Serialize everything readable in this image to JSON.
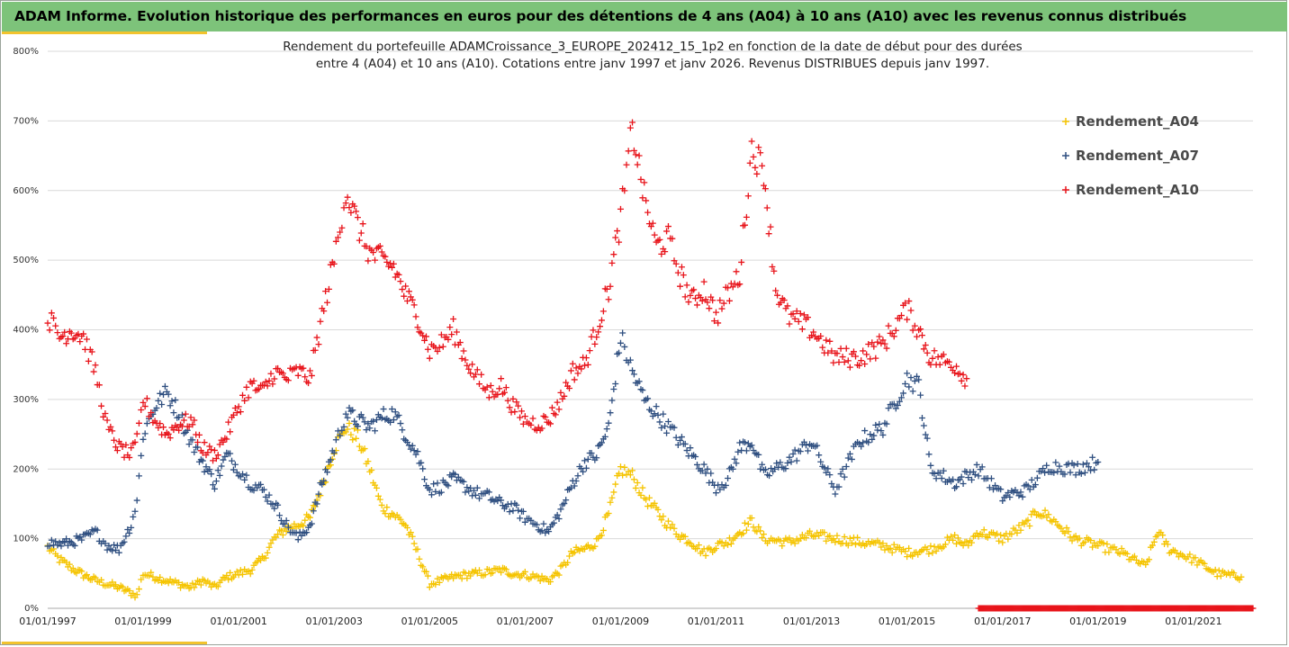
{
  "header": {
    "title": "ADAM Informe. Evolution historique des performances en euros pour des détentions de 4 ans (A04) à 10 ans (A10) avec les revenus connus distribués"
  },
  "colors": {
    "header_bg": "#7dc37a",
    "accent": "#f2c32e",
    "A04": "#f5c400",
    "A07": "#2f4f80",
    "A10": "#e8141b"
  },
  "chart_data": {
    "type": "scatter",
    "title_lines": [
      "Rendement du portefeuille ADAMCroissance_3_EUROPE_202412_15_1p2  en fonction de la date de début pour des durées",
      "entre 4 (A04) et 10 ans (A10). Cotations entre janv 1997 et janv 2026. Revenus DISTRIBUES depuis janv 1997."
    ],
    "xlabel": "",
    "ylabel": "",
    "x_axis": {
      "type": "date",
      "range": [
        "1997-01-01",
        "2022-04-01"
      ],
      "tick_labels": [
        "01/01/1997",
        "01/01/1999",
        "01/01/2001",
        "01/01/2003",
        "01/01/2005",
        "01/01/2007",
        "01/01/2009",
        "01/01/2011",
        "01/01/2013",
        "01/01/2015",
        "01/01/2017",
        "01/01/2019",
        "01/01/2021"
      ],
      "tick_dates": [
        "1997-01-01",
        "1999-01-01",
        "2001-01-01",
        "2003-01-01",
        "2005-01-01",
        "2007-01-01",
        "2009-01-01",
        "2011-01-01",
        "2013-01-01",
        "2015-01-01",
        "2017-01-01",
        "2019-01-01",
        "2021-01-01"
      ]
    },
    "y_axis": {
      "unit": "%",
      "range": [
        0,
        800
      ],
      "ticks": [
        0,
        100,
        200,
        300,
        400,
        500,
        600,
        700,
        800
      ],
      "tick_labels": [
        "0%",
        "100%",
        "200%",
        "300%",
        "400%",
        "500%",
        "600%",
        "700%",
        "800%"
      ],
      "gridlines": true
    },
    "legend": {
      "position": "right"
    },
    "marker": "+",
    "series": [
      {
        "name": "Rendement_A04",
        "color": "#f5c400",
        "points": [
          [
            "1997-01-01",
            88
          ],
          [
            "1997-04-01",
            70
          ],
          [
            "1997-07-01",
            58
          ],
          [
            "1997-10-01",
            48
          ],
          [
            "1998-01-01",
            40
          ],
          [
            "1998-04-01",
            35
          ],
          [
            "1998-07-01",
            30
          ],
          [
            "1998-10-01",
            22
          ],
          [
            "1998-11-15",
            18
          ],
          [
            "1999-01-01",
            50
          ],
          [
            "1999-04-01",
            45
          ],
          [
            "1999-07-01",
            40
          ],
          [
            "1999-10-01",
            35
          ],
          [
            "2000-01-01",
            30
          ],
          [
            "2000-04-01",
            40
          ],
          [
            "2000-07-01",
            30
          ],
          [
            "2000-10-01",
            45
          ],
          [
            "2001-01-01",
            50
          ],
          [
            "2001-04-01",
            55
          ],
          [
            "2001-07-01",
            70
          ],
          [
            "2001-10-01",
            100
          ],
          [
            "2002-01-01",
            115
          ],
          [
            "2002-04-01",
            120
          ],
          [
            "2002-07-01",
            130
          ],
          [
            "2002-10-01",
            175
          ],
          [
            "2003-01-01",
            230
          ],
          [
            "2003-04-01",
            260
          ],
          [
            "2003-07-01",
            245
          ],
          [
            "2003-10-01",
            200
          ],
          [
            "2004-01-01",
            145
          ],
          [
            "2004-04-01",
            135
          ],
          [
            "2004-07-01",
            120
          ],
          [
            "2004-10-01",
            80
          ],
          [
            "2005-01-01",
            35
          ],
          [
            "2005-04-01",
            40
          ],
          [
            "2005-07-01",
            45
          ],
          [
            "2005-10-01",
            48
          ],
          [
            "2006-01-01",
            50
          ],
          [
            "2006-04-01",
            52
          ],
          [
            "2006-07-01",
            55
          ],
          [
            "2006-10-01",
            50
          ],
          [
            "2007-01-01",
            48
          ],
          [
            "2007-04-01",
            45
          ],
          [
            "2007-07-01",
            40
          ],
          [
            "2007-10-01",
            55
          ],
          [
            "2008-01-01",
            80
          ],
          [
            "2008-04-01",
            85
          ],
          [
            "2008-07-01",
            95
          ],
          [
            "2008-10-01",
            135
          ],
          [
            "2009-01-01",
            200
          ],
          [
            "2009-04-01",
            190
          ],
          [
            "2009-07-01",
            160
          ],
          [
            "2009-10-01",
            140
          ],
          [
            "2010-01-01",
            120
          ],
          [
            "2010-04-01",
            105
          ],
          [
            "2010-07-01",
            95
          ],
          [
            "2010-10-01",
            80
          ],
          [
            "2011-01-01",
            90
          ],
          [
            "2011-04-01",
            95
          ],
          [
            "2011-07-01",
            110
          ],
          [
            "2011-10-01",
            125
          ],
          [
            "2012-01-01",
            100
          ],
          [
            "2012-07-01",
            95
          ],
          [
            "2013-01-01",
            105
          ],
          [
            "2013-07-01",
            100
          ],
          [
            "2014-01-01",
            95
          ],
          [
            "2014-07-01",
            90
          ],
          [
            "2015-01-01",
            80
          ],
          [
            "2015-07-01",
            85
          ],
          [
            "2016-01-01",
            100
          ],
          [
            "2016-04-01",
            90
          ],
          [
            "2016-07-01",
            110
          ],
          [
            "2017-01-01",
            100
          ],
          [
            "2017-07-01",
            120
          ],
          [
            "2017-10-01",
            140
          ],
          [
            "2018-01-01",
            130
          ],
          [
            "2018-07-01",
            100
          ],
          [
            "2019-01-01",
            90
          ],
          [
            "2019-07-01",
            80
          ],
          [
            "2020-01-01",
            60
          ],
          [
            "2020-04-01",
            110
          ],
          [
            "2020-07-01",
            85
          ],
          [
            "2021-01-01",
            70
          ],
          [
            "2021-07-01",
            50
          ],
          [
            "2022-01-01",
            45
          ]
        ]
      },
      {
        "name": "Rendement_A07",
        "color": "#2f4f80",
        "points": [
          [
            "1997-01-01",
            95
          ],
          [
            "1997-04-01",
            92
          ],
          [
            "1997-07-01",
            95
          ],
          [
            "1997-10-01",
            100
          ],
          [
            "1998-01-01",
            110
          ],
          [
            "1998-04-01",
            90
          ],
          [
            "1998-07-01",
            85
          ],
          [
            "1998-10-01",
            120
          ],
          [
            "1998-11-15",
            155
          ],
          [
            "1999-01-01",
            250
          ],
          [
            "1999-04-01",
            290
          ],
          [
            "1999-07-01",
            310
          ],
          [
            "1999-10-01",
            280
          ],
          [
            "2000-01-01",
            240
          ],
          [
            "2000-04-01",
            210
          ],
          [
            "2000-07-01",
            180
          ],
          [
            "2000-10-01",
            220
          ],
          [
            "2001-01-01",
            200
          ],
          [
            "2001-04-01",
            180
          ],
          [
            "2001-07-01",
            170
          ],
          [
            "2001-10-01",
            150
          ],
          [
            "2002-01-01",
            120
          ],
          [
            "2002-04-01",
            100
          ],
          [
            "2002-07-01",
            120
          ],
          [
            "2002-10-01",
            180
          ],
          [
            "2003-01-01",
            230
          ],
          [
            "2003-04-01",
            280
          ],
          [
            "2003-07-01",
            270
          ],
          [
            "2003-10-01",
            260
          ],
          [
            "2004-01-01",
            275
          ],
          [
            "2004-04-01",
            280
          ],
          [
            "2004-07-01",
            250
          ],
          [
            "2004-10-01",
            220
          ],
          [
            "2005-01-01",
            170
          ],
          [
            "2005-04-01",
            175
          ],
          [
            "2005-07-01",
            185
          ],
          [
            "2005-10-01",
            175
          ],
          [
            "2006-01-01",
            165
          ],
          [
            "2006-04-01",
            160
          ],
          [
            "2006-07-01",
            150
          ],
          [
            "2006-10-01",
            145
          ],
          [
            "2007-01-01",
            130
          ],
          [
            "2007-04-01",
            120
          ],
          [
            "2007-07-01",
            110
          ],
          [
            "2007-10-01",
            140
          ],
          [
            "2008-01-01",
            180
          ],
          [
            "2008-04-01",
            210
          ],
          [
            "2008-07-01",
            220
          ],
          [
            "2008-10-01",
            260
          ],
          [
            "2009-01-01",
            390
          ],
          [
            "2009-04-01",
            340
          ],
          [
            "2009-07-01",
            300
          ],
          [
            "2009-10-01",
            280
          ],
          [
            "2010-01-01",
            260
          ],
          [
            "2010-04-01",
            240
          ],
          [
            "2010-07-01",
            220
          ],
          [
            "2010-10-01",
            200
          ],
          [
            "2011-01-01",
            175
          ],
          [
            "2011-04-01",
            185
          ],
          [
            "2011-07-01",
            230
          ],
          [
            "2011-10-01",
            240
          ],
          [
            "2012-01-01",
            190
          ],
          [
            "2012-07-01",
            210
          ],
          [
            "2013-01-01",
            240
          ],
          [
            "2013-07-01",
            170
          ],
          [
            "2014-01-01",
            240
          ],
          [
            "2014-07-01",
            260
          ],
          [
            "2015-01-01",
            330
          ],
          [
            "2015-04-01",
            320
          ],
          [
            "2015-07-01",
            200
          ],
          [
            "2016-01-01",
            180
          ],
          [
            "2016-04-01",
            190
          ],
          [
            "2016-07-01",
            200
          ],
          [
            "2017-01-01",
            160
          ],
          [
            "2017-07-01",
            170
          ],
          [
            "2018-01-01",
            205
          ],
          [
            "2018-07-01",
            200
          ],
          [
            "2019-01-01",
            210
          ]
        ]
      },
      {
        "name": "Rendement_A10",
        "color": "#e8141b",
        "points": [
          [
            "1997-01-01",
            420
          ],
          [
            "1997-04-01",
            390
          ],
          [
            "1997-07-01",
            400
          ],
          [
            "1997-10-01",
            390
          ],
          [
            "1998-01-01",
            340
          ],
          [
            "1998-04-01",
            260
          ],
          [
            "1998-07-01",
            230
          ],
          [
            "1998-10-01",
            220
          ],
          [
            "1998-11-15",
            240
          ],
          [
            "1999-01-01",
            300
          ],
          [
            "1999-04-01",
            270
          ],
          [
            "1999-07-01",
            250
          ],
          [
            "1999-10-01",
            265
          ],
          [
            "2000-01-01",
            270
          ],
          [
            "2000-04-01",
            230
          ],
          [
            "2000-07-01",
            220
          ],
          [
            "2000-10-01",
            250
          ],
          [
            "2001-01-01",
            290
          ],
          [
            "2001-04-01",
            320
          ],
          [
            "2001-07-01",
            310
          ],
          [
            "2001-10-01",
            340
          ],
          [
            "2002-01-01",
            330
          ],
          [
            "2002-04-01",
            340
          ],
          [
            "2002-07-01",
            330
          ],
          [
            "2002-10-01",
            420
          ],
          [
            "2003-01-01",
            500
          ],
          [
            "2003-04-01",
            600
          ],
          [
            "2003-07-01",
            550
          ],
          [
            "2003-10-01",
            510
          ],
          [
            "2004-01-01",
            500
          ],
          [
            "2004-04-01",
            490
          ],
          [
            "2004-07-01",
            450
          ],
          [
            "2004-10-01",
            420
          ],
          [
            "2005-01-01",
            370
          ],
          [
            "2005-04-01",
            380
          ],
          [
            "2005-07-01",
            400
          ],
          [
            "2005-10-01",
            360
          ],
          [
            "2006-01-01",
            330
          ],
          [
            "2006-04-01",
            310
          ],
          [
            "2006-07-01",
            320
          ],
          [
            "2006-10-01",
            290
          ],
          [
            "2007-01-01",
            270
          ],
          [
            "2007-04-01",
            265
          ],
          [
            "2007-07-01",
            270
          ],
          [
            "2007-10-01",
            300
          ],
          [
            "2008-01-01",
            340
          ],
          [
            "2008-04-01",
            350
          ],
          [
            "2008-07-01",
            400
          ],
          [
            "2008-10-01",
            460
          ],
          [
            "2009-01-01",
            560
          ],
          [
            "2009-04-01",
            690
          ],
          [
            "2009-07-01",
            590
          ],
          [
            "2009-10-01",
            520
          ],
          [
            "2010-01-01",
            530
          ],
          [
            "2010-04-01",
            480
          ],
          [
            "2010-07-01",
            440
          ],
          [
            "2010-10-01",
            460
          ],
          [
            "2011-01-01",
            420
          ],
          [
            "2011-04-01",
            450
          ],
          [
            "2011-07-01",
            480
          ],
          [
            "2011-10-01",
            660
          ],
          [
            "2012-01-01",
            630
          ],
          [
            "2012-04-01",
            460
          ],
          [
            "2012-07-01",
            420
          ],
          [
            "2013-01-01",
            400
          ],
          [
            "2013-07-01",
            360
          ],
          [
            "2014-01-01",
            360
          ],
          [
            "2014-07-01",
            380
          ],
          [
            "2015-01-01",
            430
          ],
          [
            "2015-04-01",
            400
          ],
          [
            "2015-07-01",
            360
          ],
          [
            "2016-01-01",
            350
          ],
          [
            "2016-04-01",
            330
          ]
        ]
      }
    ]
  }
}
